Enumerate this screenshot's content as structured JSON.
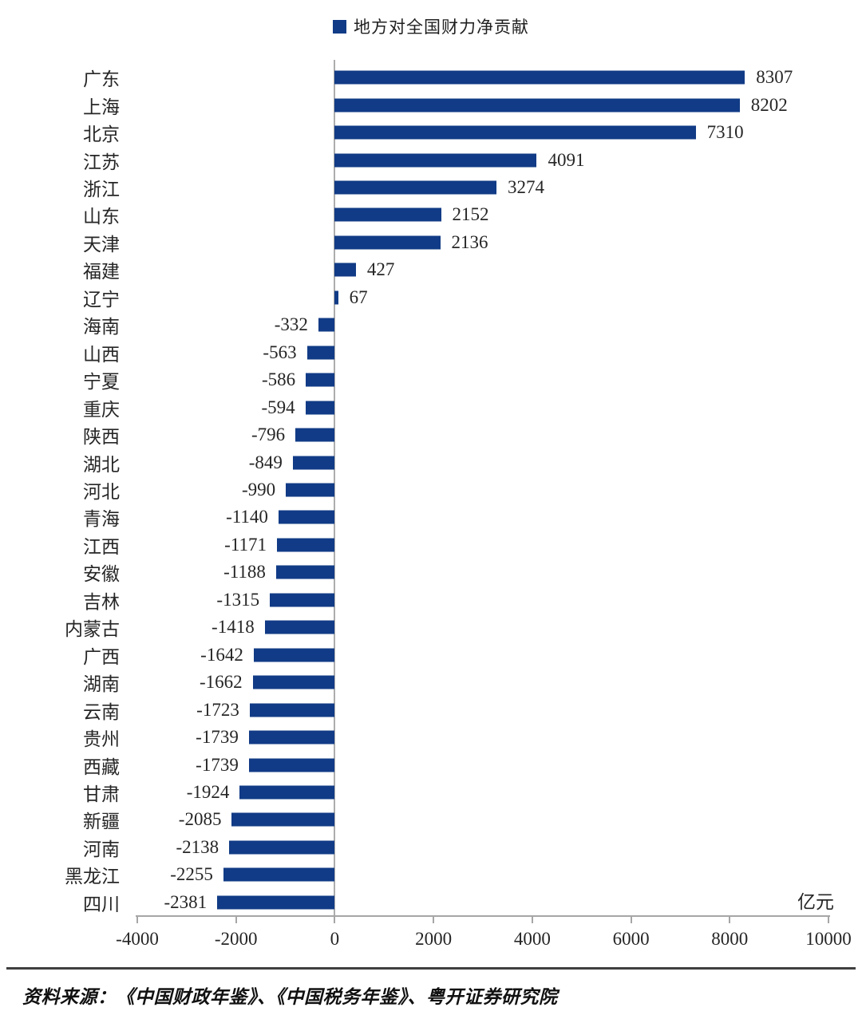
{
  "legend": {
    "label": "地方对全国财力净贡献"
  },
  "unit_label": "亿元",
  "source": "资料来源：《中国财政年鉴》、《中国税务年鉴》、粤开证券研究院",
  "colors": {
    "bar": "#113b86",
    "axis": "#a6a6a6",
    "text": "#262626",
    "footer_divider": "#3f3f3f"
  },
  "chart_data": {
    "type": "bar",
    "orientation": "horizontal",
    "title": "地方对全国财力净贡献",
    "categories": [
      "广东",
      "上海",
      "北京",
      "江苏",
      "浙江",
      "山东",
      "天津",
      "福建",
      "辽宁",
      "海南",
      "山西",
      "宁夏",
      "重庆",
      "陕西",
      "湖北",
      "河北",
      "青海",
      "江西",
      "安徽",
      "吉林",
      "内蒙古",
      "广西",
      "湖南",
      "云南",
      "贵州",
      "西藏",
      "甘肃",
      "新疆",
      "河南",
      "黑龙江",
      "四川"
    ],
    "values": [
      8307,
      8202,
      7310,
      4091,
      3274,
      2152,
      2136,
      427,
      67,
      -332,
      -563,
      -586,
      -594,
      -796,
      -849,
      -990,
      -1140,
      -1171,
      -1188,
      -1315,
      -1418,
      -1642,
      -1662,
      -1723,
      -1739,
      -1739,
      -1924,
      -2085,
      -2138,
      -2255,
      -2381
    ],
    "xlabel": "亿元",
    "ylabel": "",
    "xlim": [
      -4000,
      10000
    ],
    "xticks": [
      -4000,
      -2000,
      0,
      2000,
      4000,
      6000,
      8000,
      10000
    ],
    "grid": false,
    "legend_position": "top",
    "data_labels": true
  }
}
